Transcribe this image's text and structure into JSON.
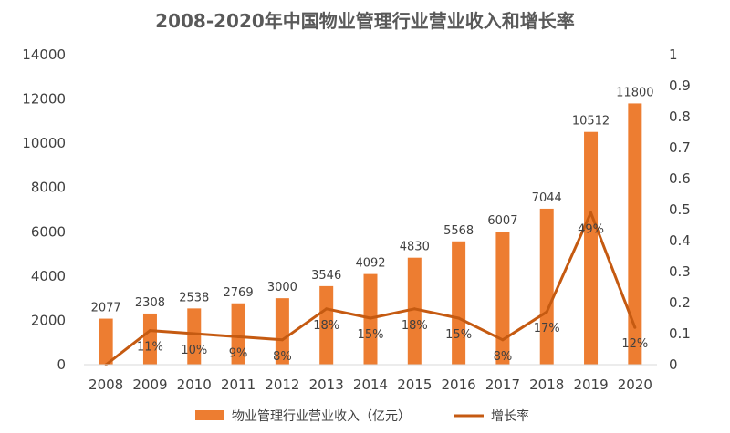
{
  "chart_data": {
    "type": "bar+line",
    "title": "2008-2020年中国物业管理行业营业收入和增长率",
    "categories": [
      "2008",
      "2009",
      "2010",
      "2011",
      "2012",
      "2013",
      "2014",
      "2015",
      "2016",
      "2017",
      "2018",
      "2019",
      "2020"
    ],
    "series": [
      {
        "name": "物业管理行业营业收入（亿元）",
        "type": "bar",
        "axis": "left",
        "values": [
          2077,
          2308,
          2538,
          2769,
          3000,
          3546,
          4092,
          4830,
          5568,
          6007,
          7044,
          10512,
          11800
        ],
        "labels": [
          "2077",
          "2308",
          "2538",
          "2769",
          "3000",
          "3546",
          "4092",
          "4830",
          "5568",
          "6007",
          "7044",
          "10512",
          "11800"
        ]
      },
      {
        "name": "增长率",
        "type": "line",
        "axis": "right",
        "values": [
          0,
          0.11,
          0.1,
          0.09,
          0.08,
          0.18,
          0.15,
          0.18,
          0.15,
          0.08,
          0.17,
          0.49,
          0.12
        ],
        "labels": [
          "",
          "11%",
          "10%",
          "9%",
          "8%",
          "18%",
          "15%",
          "18%",
          "15%",
          "8%",
          "17%",
          "49%",
          "12%"
        ]
      }
    ],
    "y_left": {
      "ylim": [
        0,
        14000
      ],
      "ticks": [
        "0",
        "2000",
        "4000",
        "6000",
        "8000",
        "10000",
        "12000",
        "14000"
      ]
    },
    "y_right": {
      "ylim": [
        0,
        1
      ],
      "ticks": [
        "0",
        "0.1",
        "0.2",
        "0.3",
        "0.4",
        "0.5",
        "0.6",
        "0.7",
        "0.8",
        "0.9",
        "1"
      ]
    },
    "grid": false,
    "legend_position": "bottom",
    "colors": {
      "bar": "#ED7D31",
      "line": "#C55A11",
      "text": "#404040",
      "title": "#595959"
    }
  }
}
